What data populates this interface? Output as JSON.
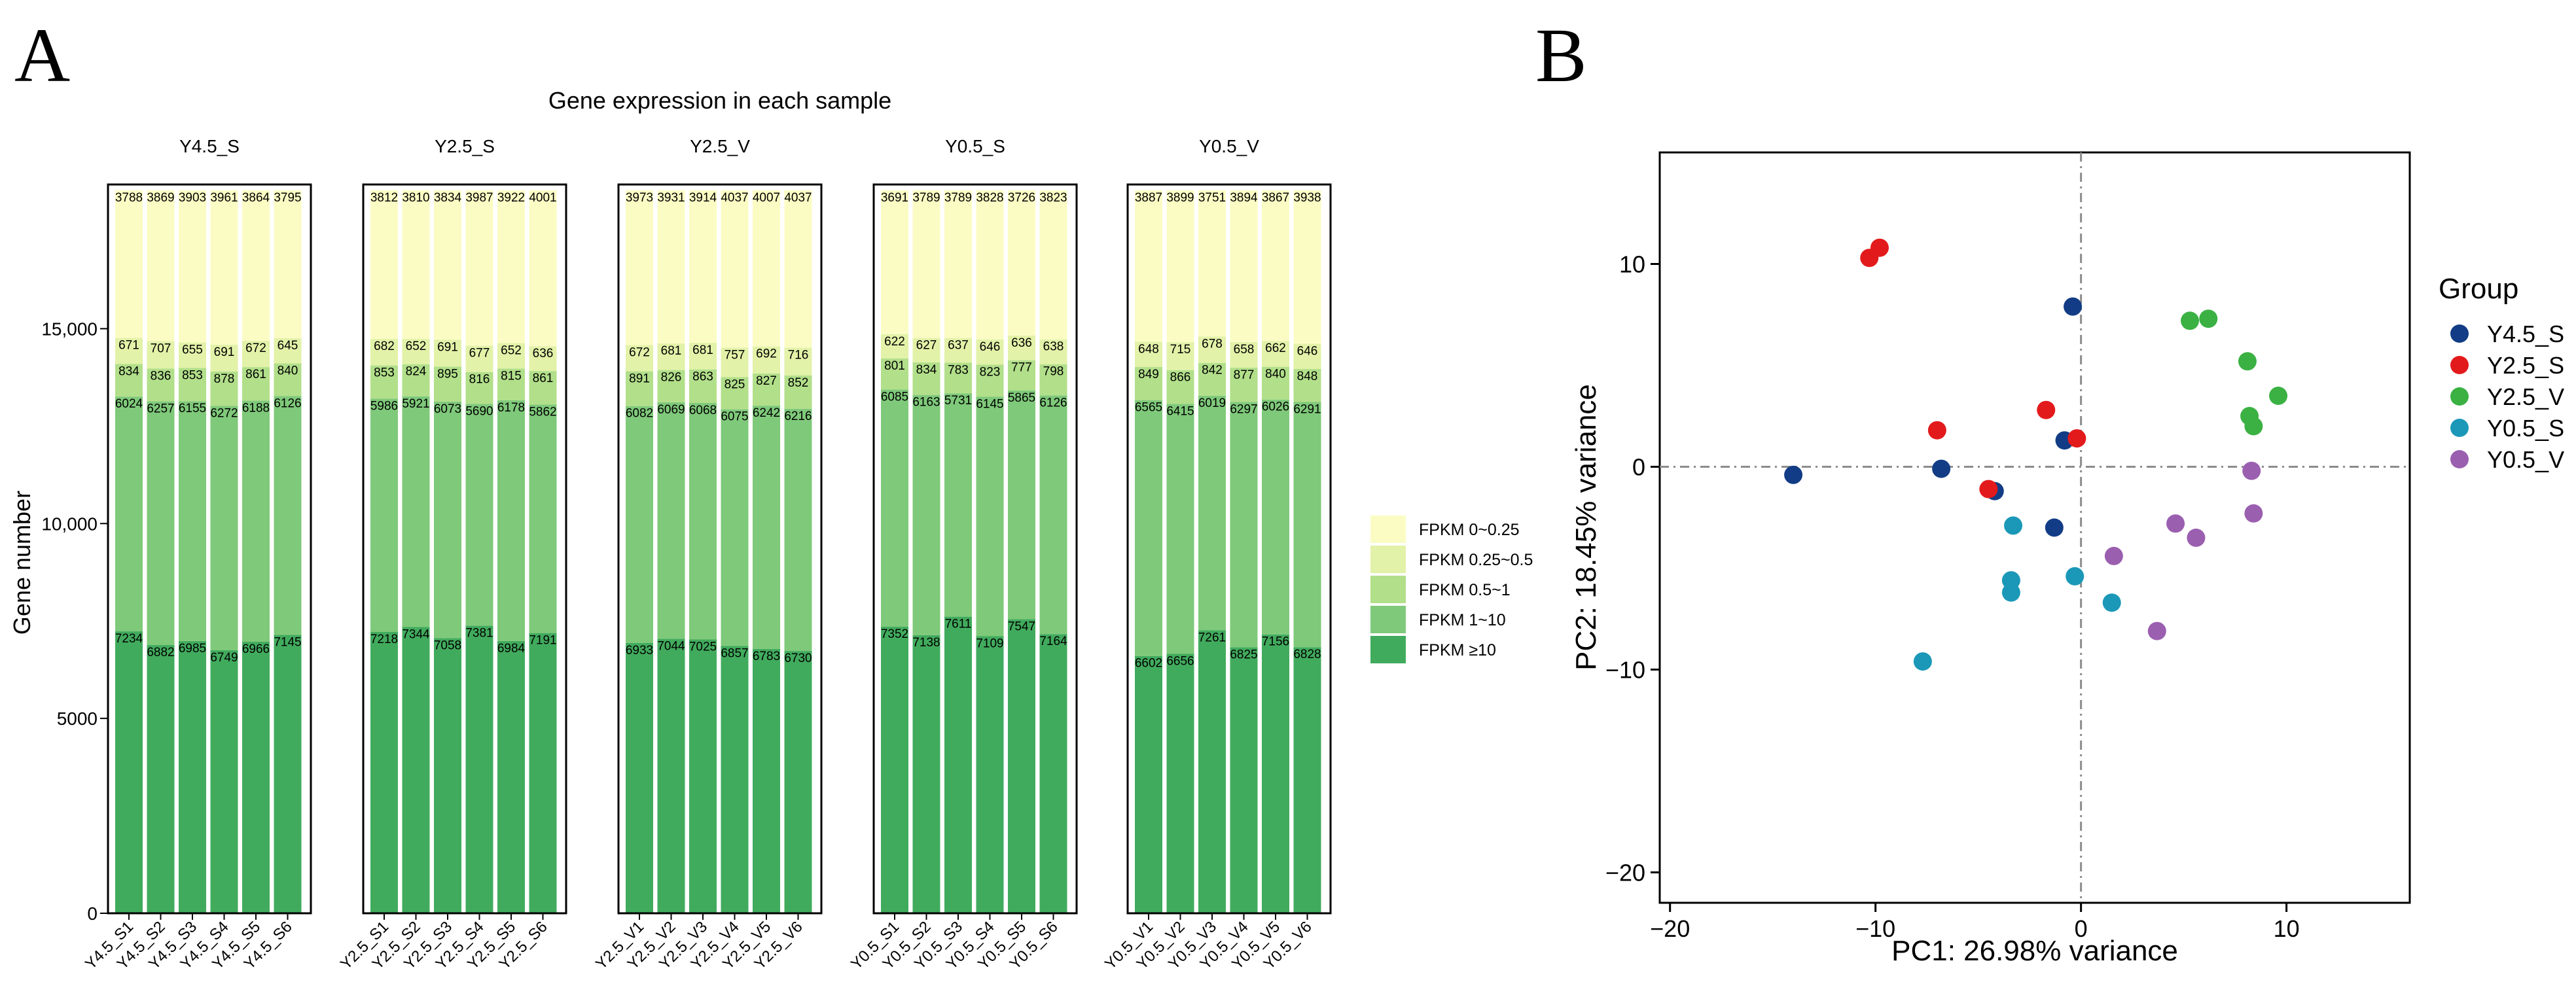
{
  "panels": {
    "a": "A",
    "b": "B"
  },
  "colors": {
    "FPKM 0~0.25": "#fbfcc4",
    "FPKM 0.25~0.5": "#e2f2a8",
    "FPKM 0.5~1": "#b2df8a",
    "FPKM 1~10": "#7fc97a",
    "FPKM ≥10": "#41ab5d",
    "Y4.5_S": "#123c85",
    "Y2.5_S": "#e31a1c",
    "Y2.5_V": "#3bb143",
    "Y0.5_S": "#1b98b8",
    "Y0.5_V": "#9b5fb0"
  },
  "chart_data": [
    {
      "type": "bar",
      "stacked": true,
      "title": "Gene expression in each sample",
      "ylabel": "Gene number",
      "xlabel": "",
      "ylim": [
        0,
        18700
      ],
      "yticks": [
        0,
        5000,
        10000,
        15000
      ],
      "ytick_labels": [
        "0",
        "5000",
        "10,000",
        "15,000"
      ],
      "legend": {
        "position": "right",
        "items": [
          "FPKM 0~0.25",
          "FPKM 0.25~0.5",
          "FPKM 0.5~1",
          "FPKM 1~10",
          "FPKM ≥10"
        ]
      },
      "stack_order": [
        "FPKM ≥10",
        "FPKM 1~10",
        "FPKM 0.5~1",
        "FPKM 0.25~0.5",
        "FPKM 0~0.25"
      ],
      "facets": [
        {
          "name": "Y4.5_S",
          "categories": [
            "Y4.5_S1",
            "Y4.5_S2",
            "Y4.5_S3",
            "Y4.5_S4",
            "Y4.5_S5",
            "Y4.5_S6"
          ],
          "series": [
            {
              "name": "FPKM ≥10",
              "values": [
                7234,
                6882,
                6985,
                6749,
                6966,
                7145
              ]
            },
            {
              "name": "FPKM 1~10",
              "values": [
                6024,
                6257,
                6155,
                6272,
                6188,
                6126
              ]
            },
            {
              "name": "FPKM 0.5~1",
              "values": [
                834,
                836,
                853,
                878,
                861,
                840
              ]
            },
            {
              "name": "FPKM 0.25~0.5",
              "values": [
                671,
                707,
                655,
                691,
                672,
                645
              ]
            },
            {
              "name": "FPKM 0~0.25",
              "values": [
                3788,
                3869,
                3903,
                3961,
                3864,
                3795
              ]
            }
          ]
        },
        {
          "name": "Y2.5_S",
          "categories": [
            "Y2.5_S1",
            "Y2.5_S2",
            "Y2.5_S3",
            "Y2.5_S4",
            "Y2.5_S5",
            "Y2.5_S6"
          ],
          "series": [
            {
              "name": "FPKM ≥10",
              "values": [
                7218,
                7344,
                7058,
                7381,
                6984,
                7191
              ]
            },
            {
              "name": "FPKM 1~10",
              "values": [
                5986,
                5921,
                6073,
                5690,
                6178,
                5862
              ]
            },
            {
              "name": "FPKM 0.5~1",
              "values": [
                853,
                824,
                895,
                816,
                815,
                861
              ]
            },
            {
              "name": "FPKM 0.25~0.5",
              "values": [
                682,
                652,
                691,
                677,
                652,
                636
              ]
            },
            {
              "name": "FPKM 0~0.25",
              "values": [
                3812,
                3810,
                3834,
                3987,
                3922,
                4001
              ]
            }
          ]
        },
        {
          "name": "Y2.5_V",
          "categories": [
            "Y2.5_V1",
            "Y2.5_V2",
            "Y2.5_V3",
            "Y2.5_V4",
            "Y2.5_V5",
            "Y2.5_V6"
          ],
          "series": [
            {
              "name": "FPKM ≥10",
              "values": [
                6933,
                7044,
                7025,
                6857,
                6783,
                6730
              ]
            },
            {
              "name": "FPKM 1~10",
              "values": [
                6082,
                6069,
                6068,
                6075,
                6242,
                6216
              ]
            },
            {
              "name": "FPKM 0.5~1",
              "values": [
                891,
                826,
                863,
                825,
                827,
                852
              ]
            },
            {
              "name": "FPKM 0.25~0.5",
              "values": [
                672,
                681,
                681,
                757,
                692,
                716
              ]
            },
            {
              "name": "FPKM 0~0.25",
              "values": [
                3973,
                3931,
                3914,
                4037,
                4007,
                4037
              ]
            }
          ]
        },
        {
          "name": "Y0.5_S",
          "categories": [
            "Y0.5_S1",
            "Y0.5_S2",
            "Y0.5_S3",
            "Y0.5_S4",
            "Y0.5_S5",
            "Y0.5_S6"
          ],
          "series": [
            {
              "name": "FPKM ≥10",
              "values": [
                7352,
                7138,
                7611,
                7109,
                7547,
                7164
              ]
            },
            {
              "name": "FPKM 1~10",
              "values": [
                6085,
                6163,
                5731,
                6145,
                5865,
                6126
              ]
            },
            {
              "name": "FPKM 0.5~1",
              "values": [
                801,
                834,
                783,
                823,
                777,
                798
              ]
            },
            {
              "name": "FPKM 0.25~0.5",
              "values": [
                622,
                627,
                637,
                646,
                636,
                638
              ]
            },
            {
              "name": "FPKM 0~0.25",
              "values": [
                3691,
                3789,
                3789,
                3828,
                3726,
                3823
              ]
            }
          ]
        },
        {
          "name": "Y0.5_V",
          "categories": [
            "Y0.5_V1",
            "Y0.5_V2",
            "Y0.5_V3",
            "Y0.5_V4",
            "Y0.5_V5",
            "Y0.5_V6"
          ],
          "series": [
            {
              "name": "FPKM ≥10",
              "values": [
                6602,
                6656,
                7261,
                6825,
                7156,
                6828
              ]
            },
            {
              "name": "FPKM 1~10",
              "values": [
                6565,
                6415,
                6019,
                6297,
                6026,
                6291
              ]
            },
            {
              "name": "FPKM 0.5~1",
              "values": [
                849,
                866,
                842,
                877,
                840,
                848
              ]
            },
            {
              "name": "FPKM 0.25~0.5",
              "values": [
                648,
                715,
                678,
                658,
                662,
                646
              ]
            },
            {
              "name": "FPKM 0~0.25",
              "values": [
                3887,
                3899,
                3751,
                3894,
                3867,
                3938
              ]
            }
          ]
        }
      ]
    },
    {
      "type": "scatter",
      "xlabel": "PC1: 26.98% variance",
      "ylabel": "PC2: 18.45% variance",
      "xlim": [
        -20.5,
        16
      ],
      "ylim": [
        -21.5,
        15.5
      ],
      "xticks": [
        -20,
        -10,
        0,
        10
      ],
      "xtick_labels": [
        "−20",
        "−10",
        "0",
        "10"
      ],
      "yticks": [
        -20,
        -10,
        0,
        10
      ],
      "ytick_labels": [
        "−20",
        "−10",
        "0",
        "10"
      ],
      "reference_lines": {
        "x": 0,
        "y": 0,
        "style": "dashdot"
      },
      "grid": false,
      "legend": {
        "position": "right",
        "title": "Group"
      },
      "series": [
        {
          "name": "Y4.5_S",
          "points": [
            [
              -14.0,
              -0.4
            ],
            [
              -6.8,
              -0.1
            ],
            [
              -4.2,
              -1.2
            ],
            [
              -0.8,
              1.3
            ],
            [
              -0.4,
              7.9
            ],
            [
              -1.3,
              -3.0
            ]
          ]
        },
        {
          "name": "Y2.5_S",
          "points": [
            [
              -10.3,
              10.3
            ],
            [
              -9.8,
              10.8
            ],
            [
              -7.0,
              1.8
            ],
            [
              -4.5,
              -1.1
            ],
            [
              -1.7,
              2.8
            ],
            [
              -0.2,
              1.4
            ]
          ]
        },
        {
          "name": "Y2.5_V",
          "points": [
            [
              5.3,
              7.2
            ],
            [
              6.2,
              7.3
            ],
            [
              8.1,
              5.2
            ],
            [
              9.6,
              3.5
            ],
            [
              8.2,
              2.5
            ],
            [
              8.4,
              2.0
            ]
          ]
        },
        {
          "name": "Y0.5_S",
          "points": [
            [
              -3.3,
              -2.9
            ],
            [
              -3.4,
              -5.6
            ],
            [
              -3.4,
              -6.2
            ],
            [
              -0.3,
              -5.4
            ],
            [
              1.5,
              -6.7
            ],
            [
              -7.7,
              -9.6
            ]
          ]
        },
        {
          "name": "Y0.5_V",
          "points": [
            [
              4.6,
              -2.8
            ],
            [
              5.6,
              -3.5
            ],
            [
              8.3,
              -0.2
            ],
            [
              8.4,
              -2.3
            ],
            [
              1.6,
              -4.4
            ],
            [
              3.7,
              -8.1
            ]
          ]
        }
      ]
    }
  ]
}
